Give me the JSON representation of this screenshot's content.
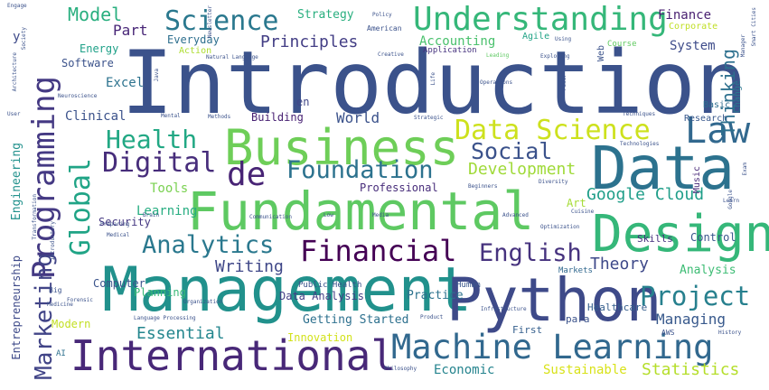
{
  "words": [
    {
      "id": "introduction",
      "text": "Introduction",
      "color": "#3b528b"
    },
    {
      "id": "management",
      "text": "Management",
      "color": "#21918c"
    },
    {
      "id": "fundamental",
      "text": "Fundamental",
      "color": "#5ec962"
    },
    {
      "id": "python",
      "text": "Python",
      "color": "#3e4a89"
    },
    {
      "id": "data",
      "text": "Data",
      "color": "#2c728e"
    },
    {
      "id": "business",
      "text": "Business",
      "color": "#6ece58"
    },
    {
      "id": "design",
      "text": "Design",
      "color": "#35b779"
    },
    {
      "id": "international",
      "text": "International",
      "color": "#482878"
    },
    {
      "id": "machine-learning",
      "text": "Machine Learning",
      "color": "#31688e"
    },
    {
      "id": "understanding",
      "text": "Understanding",
      "color": "#35b779"
    },
    {
      "id": "science",
      "text": "Science",
      "color": "#2a788e"
    },
    {
      "id": "data-science",
      "text": "Data Science",
      "color": "#cde11d"
    },
    {
      "id": "programming",
      "text": "Programming",
      "color": "#443983"
    },
    {
      "id": "financial",
      "text": "Financial",
      "color": "#440154"
    },
    {
      "id": "law",
      "text": "Law",
      "color": "#31688e"
    },
    {
      "id": "digital",
      "text": "Digital",
      "color": "#472d7b"
    },
    {
      "id": "analytics",
      "text": "Analytics",
      "color": "#2a788e"
    },
    {
      "id": "global",
      "text": "Global",
      "color": "#20a486"
    },
    {
      "id": "health",
      "text": "Health",
      "color": "#22a884"
    },
    {
      "id": "de",
      "text": "de",
      "color": "#482475"
    },
    {
      "id": "foundation",
      "text": "Foundation",
      "color": "#2c728e"
    },
    {
      "id": "english",
      "text": "English",
      "color": "#46327e"
    },
    {
      "id": "project",
      "text": "Project",
      "color": "#27808e"
    },
    {
      "id": "marketing",
      "text": "Marketing",
      "color": "#414487"
    },
    {
      "id": "social",
      "text": "Social",
      "color": "#3b528b"
    },
    {
      "id": "principles",
      "text": "Principles",
      "color": "#433e85"
    },
    {
      "id": "model",
      "text": "Model",
      "color": "#29af7f"
    },
    {
      "id": "development",
      "text": "Development",
      "color": "#a0da39"
    },
    {
      "id": "google-cloud",
      "text": "Google Cloud",
      "color": "#1f9e89"
    },
    {
      "id": "thinking",
      "text": "Thinking",
      "color": "#2d708e"
    },
    {
      "id": "essential",
      "text": "Essential",
      "color": "#24868e"
    },
    {
      "id": "theory",
      "text": "Theory",
      "color": "#3e4989"
    },
    {
      "id": "writing",
      "text": "Writing",
      "color": "#3f4788"
    },
    {
      "id": "statistics",
      "text": "Statistics",
      "color": "#b5de2b"
    },
    {
      "id": "sustainable",
      "text": "Sustainable",
      "color": "#d8e219"
    },
    {
      "id": "economic",
      "text": "Economic",
      "color": "#25848e"
    },
    {
      "id": "managing",
      "text": "Managing",
      "color": "#38598c"
    },
    {
      "id": "world",
      "text": "World",
      "color": "#3b528b"
    },
    {
      "id": "part",
      "text": "Part",
      "color": "#482677"
    },
    {
      "id": "strategy",
      "text": "Strategy",
      "color": "#29af7f"
    },
    {
      "id": "accounting",
      "text": "Accounting",
      "color": "#4ac16d"
    },
    {
      "id": "system",
      "text": "System",
      "color": "#3e4c8a"
    },
    {
      "id": "finance",
      "text": "Finance",
      "color": "#481f70"
    },
    {
      "id": "clinical",
      "text": "Clinical",
      "color": "#3b528b"
    },
    {
      "id": "excel",
      "text": "Excel",
      "color": "#2c728e"
    },
    {
      "id": "tools",
      "text": "Tools",
      "color": "#7ad151"
    },
    {
      "id": "learning",
      "text": "Learning",
      "color": "#27ad81"
    },
    {
      "id": "security",
      "text": "Security",
      "color": "#453882"
    },
    {
      "id": "computer",
      "text": "Computer",
      "color": "#3a538b"
    },
    {
      "id": "planning",
      "text": "Planning",
      "color": "#38b977"
    },
    {
      "id": "modern",
      "text": "Modern",
      "color": "#c2df23"
    },
    {
      "id": "innovation",
      "text": "Innovation",
      "color": "#d2e21b"
    },
    {
      "id": "getting-started",
      "text": "Getting Started",
      "color": "#2d708e"
    },
    {
      "id": "data-analysis",
      "text": "Data Analysis",
      "color": "#433e85"
    },
    {
      "id": "practice",
      "text": "Practice",
      "color": "#2c728e"
    },
    {
      "id": "analysis",
      "text": "Analysis",
      "color": "#3dbc74"
    },
    {
      "id": "control",
      "text": "Control",
      "color": "#39568c"
    },
    {
      "id": "skills",
      "text": "Skills",
      "color": "#46307e"
    },
    {
      "id": "art",
      "text": "Art",
      "color": "#a5db36"
    },
    {
      "id": "professional",
      "text": "Professional",
      "color": "#472c7a"
    },
    {
      "id": "building",
      "text": "Building",
      "color": "#482173"
    },
    {
      "id": "energy",
      "text": "Energy",
      "color": "#1fa188"
    },
    {
      "id": "software",
      "text": "Software",
      "color": "#3b528b"
    },
    {
      "id": "everyday",
      "text": "Everyday",
      "color": "#2e6f8e"
    },
    {
      "id": "action",
      "text": "Action",
      "color": "#addc30"
    },
    {
      "id": "engineering",
      "text": "Engineering",
      "color": "#21918c"
    },
    {
      "id": "entrepreneurship",
      "text": "Entrepreneurship",
      "color": "#3e4a89"
    },
    {
      "id": "en",
      "text": "en",
      "color": "#404688"
    },
    {
      "id": "para",
      "text": "para",
      "color": "#3b528b"
    },
    {
      "id": "first",
      "text": "First",
      "color": "#355f8d"
    },
    {
      "id": "healthcare",
      "text": "Healthcare",
      "color": "#355e8d"
    },
    {
      "id": "basic",
      "text": "Basic",
      "color": "#2e6e8e"
    },
    {
      "id": "research",
      "text": "Research",
      "color": "#38588c"
    },
    {
      "id": "web",
      "text": "Web",
      "color": "#3b528b"
    },
    {
      "id": "change",
      "text": "Change",
      "color": "#2a778e"
    },
    {
      "id": "music",
      "text": "Music",
      "color": "#482878"
    },
    {
      "id": "agile",
      "text": "Agile",
      "color": "#20a386"
    },
    {
      "id": "application",
      "text": "Application",
      "color": "#46337f"
    },
    {
      "id": "course",
      "text": "Course",
      "color": "#60ca60"
    },
    {
      "id": "corporate",
      "text": "Corporate",
      "color": "#c0df25"
    },
    {
      "id": "public-health",
      "text": "Public Health",
      "color": "#3a538b"
    },
    {
      "id": "human",
      "text": "Human",
      "color": "#39568c"
    },
    {
      "id": "markets",
      "text": "Markets",
      "color": "#31688e"
    },
    {
      "id": "american",
      "text": "American",
      "color": "#3b528b"
    },
    {
      "id": "y",
      "text": "y",
      "color": "#3e4a89"
    },
    {
      "id": "ai",
      "text": "AI",
      "color": "#2d708e"
    },
    {
      "id": "big",
      "text": "Big",
      "color": "#3b528b"
    },
    {
      "id": "aws",
      "text": "AWS",
      "color": "#3b528b"
    },
    {
      "id": "mental",
      "text": "Mental",
      "color": "#3b528b"
    },
    {
      "id": "natural-language",
      "text": "Natural Language",
      "color": "#3b528b"
    },
    {
      "id": "creative",
      "text": "Creative",
      "color": "#3b528b"
    },
    {
      "id": "leading",
      "text": "Leading",
      "color": "#5ec962"
    },
    {
      "id": "exploring",
      "text": "Exploring",
      "color": "#3b528b"
    },
    {
      "id": "operations",
      "text": "Operations",
      "color": "#3b528b"
    },
    {
      "id": "strategic",
      "text": "Strategic",
      "color": "#3b528b"
    },
    {
      "id": "techniques",
      "text": "Techniques",
      "color": "#3b528b"
    },
    {
      "id": "technologies",
      "text": "Technologies",
      "color": "#3b528b"
    },
    {
      "id": "methods",
      "text": "Methods",
      "color": "#3b528b"
    },
    {
      "id": "communication",
      "text": "Communication",
      "color": "#3b528b"
    },
    {
      "id": "beginners",
      "text": "Beginners",
      "color": "#3b528b"
    },
    {
      "id": "diversity",
      "text": "Diversity",
      "color": "#3b528b"
    },
    {
      "id": "preparing",
      "text": "Preparing",
      "color": "#3b528b"
    },
    {
      "id": "forensic",
      "text": "Forensic",
      "color": "#3b528b"
    },
    {
      "id": "language-processing",
      "text": "Language Processing",
      "color": "#3b528b"
    },
    {
      "id": "organization",
      "text": "Organization",
      "color": "#3b528b"
    },
    {
      "id": "philosophy",
      "text": "Philosophy",
      "color": "#3b528b"
    },
    {
      "id": "infrastructure",
      "text": "Infrastructure",
      "color": "#3b528b"
    },
    {
      "id": "optimization",
      "text": "Optimization",
      "color": "#3b528b"
    },
    {
      "id": "product",
      "text": "Product",
      "color": "#3b528b"
    },
    {
      "id": "medical",
      "text": "Medical",
      "color": "#3b528b"
    },
    {
      "id": "medicine",
      "text": "Medicine",
      "color": "#3b528b"
    },
    {
      "id": "policy",
      "text": "Policy",
      "color": "#3b528b"
    },
    {
      "id": "using",
      "text": "Using",
      "color": "#3b528b"
    },
    {
      "id": "life",
      "text": "Life",
      "color": "#3b528b"
    },
    {
      "id": "power",
      "text": "Power",
      "color": "#3b528b"
    },
    {
      "id": "architecture",
      "text": "Architecture",
      "color": "#3b528b"
    },
    {
      "id": "society",
      "text": "Society",
      "color": "#3b528b"
    },
    {
      "id": "user",
      "text": "User",
      "color": "#3b528b"
    },
    {
      "id": "neuroscience",
      "text": "Neuroscience",
      "color": "#3b528b"
    },
    {
      "id": "exam",
      "text": "Exam",
      "color": "#3b528b"
    },
    {
      "id": "google",
      "text": "Google",
      "color": "#3b528b"
    },
    {
      "id": "brain",
      "text": "Brain",
      "color": "#3b528b"
    },
    {
      "id": "media",
      "text": "Media",
      "color": "#3b528b"
    },
    {
      "id": "history",
      "text": "History",
      "color": "#3b528b"
    },
    {
      "id": "smart-cities",
      "text": "Smart Cities",
      "color": "#3b528b"
    },
    {
      "id": "manager",
      "text": "Manager",
      "color": "#3b528b"
    },
    {
      "id": "engage",
      "text": "Engage",
      "color": "#3b528b"
    },
    {
      "id": "newsletter",
      "text": "Newsletter",
      "color": "#3b528b"
    },
    {
      "id": "java",
      "text": "Java",
      "color": "#3b528b"
    },
    {
      "id": "low",
      "text": "Low",
      "color": "#3b528b"
    },
    {
      "id": "advanced",
      "text": "Advanced",
      "color": "#3b528b"
    },
    {
      "id": "transformation",
      "text": "Transformation",
      "color": "#3b528b"
    },
    {
      "id": "introductory",
      "text": "Introductory",
      "color": "#3b528b"
    },
    {
      "id": "learn",
      "text": "Learn",
      "color": "#3b528b"
    },
    {
      "id": "cuisine",
      "text": "Cuisine",
      "color": "#3b528b"
    }
  ]
}
